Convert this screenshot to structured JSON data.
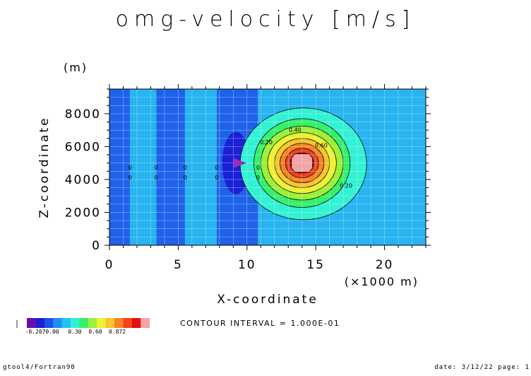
{
  "page": {
    "title": "omg-velocity [m/s]",
    "contour_interval": "CONTOUR INTERVAL = 1.000E-01",
    "footer_left": "gtool4/Fortran90",
    "footer_right": "date: 3/12/22 page: 1"
  },
  "chart_data": {
    "type": "heatmap",
    "title": "omg-velocity [m/s]",
    "xlabel": "X-coordinate",
    "x_unit": "(×1000 m)",
    "ylabel": "Z-coordinate",
    "y_unit": "(m)",
    "xlim": [
      0,
      23
    ],
    "ylim": [
      0,
      9500
    ],
    "x_ticks": [
      0,
      5,
      10,
      15,
      20
    ],
    "x_tick_labels": [
      "0",
      "5",
      "10",
      "15",
      "20"
    ],
    "y_ticks": [
      0,
      2000,
      4000,
      6000,
      8000
    ],
    "y_tick_labels": [
      "0",
      "2000",
      "4000",
      "6000",
      "8000"
    ],
    "grid": true,
    "contour_interval": 0.1,
    "color_scale": {
      "levels": [
        -0.207,
        0.0,
        0.3,
        0.6,
        0.872
      ],
      "level_labels": [
        "-0.207",
        "0.00",
        "0.30",
        "0.60",
        "0.872"
      ],
      "colors": [
        "#6a0ea8",
        "#1b1fd6",
        "#1e4fe6",
        "#1f8ff3",
        "#22c3f3",
        "#33f2d4",
        "#34f06a",
        "#9cf035",
        "#eef22e",
        "#f9c52a",
        "#f98320",
        "#f5401d",
        "#e01010",
        "#f6a3a6"
      ]
    },
    "bands": [
      {
        "x0": 0.0,
        "x1": 1.5,
        "value": -0.05,
        "color": "#1f62ea"
      },
      {
        "x0": 1.5,
        "x1": 3.4,
        "value": 0.02,
        "color": "#27b4f0"
      },
      {
        "x0": 3.4,
        "x1": 5.5,
        "value": -0.05,
        "color": "#1f62ea"
      },
      {
        "x0": 5.5,
        "x1": 7.8,
        "value": 0.02,
        "color": "#27b4f0"
      },
      {
        "x0": 7.8,
        "x1": 10.8,
        "value": -0.05,
        "color": "#1f62ea"
      },
      {
        "x0": 10.8,
        "x1": 23.0,
        "value": 0.02,
        "color": "#27b4f0"
      }
    ],
    "features": [
      {
        "name": "negative-core",
        "cx": 9.2,
        "cz": 5000,
        "rx": 1.0,
        "rz": 1900,
        "value": -0.15,
        "color": "#1b1fd6"
      },
      {
        "name": "positive-peak",
        "cx": 14.0,
        "cz": 5000,
        "value": 0.872
      }
    ],
    "contours": [
      {
        "value": 0.1,
        "color": "#33f2d4",
        "cx": 14.1,
        "cz": 4950,
        "rx": 4.6,
        "rz": 3400
      },
      {
        "value": 0.2,
        "color": "#34f06a",
        "cx": 14.0,
        "cz": 5000,
        "rx": 3.5,
        "rz": 2700
      },
      {
        "value": 0.3,
        "color": "#9cf035",
        "cx": 14.0,
        "cz": 5000,
        "rx": 3.0,
        "rz": 2250
      },
      {
        "value": 0.4,
        "color": "#eef22e",
        "cx": 14.0,
        "cz": 5000,
        "rx": 2.5,
        "rz": 1850
      },
      {
        "value": 0.5,
        "color": "#f9c52a",
        "cx": 14.0,
        "cz": 5000,
        "rx": 2.0,
        "rz": 1500
      },
      {
        "value": 0.6,
        "color": "#f98320",
        "cx": 14.0,
        "cz": 5000,
        "rx": 1.6,
        "rz": 1200
      },
      {
        "value": 0.7,
        "color": "#f5401d",
        "cx": 14.0,
        "cz": 5000,
        "rx": 1.2,
        "rz": 900
      },
      {
        "value": 0.8,
        "color": "#e01010",
        "cx": 14.0,
        "cz": 5000,
        "rx": 0.85,
        "rz": 620
      }
    ],
    "contour_labels": [
      {
        "text": "0.40",
        "x": 13.5,
        "z": 6900
      },
      {
        "text": "0.20",
        "x": 11.4,
        "z": 6150
      },
      {
        "text": "0.60",
        "x": 15.4,
        "z": 5950
      },
      {
        "text": "0.20",
        "x": 17.2,
        "z": 3500
      },
      {
        "text": "0",
        "x": 1.5,
        "z": 4600
      },
      {
        "text": "0",
        "x": 1.5,
        "z": 4000
      },
      {
        "text": "0",
        "x": 3.4,
        "z": 4600
      },
      {
        "text": "0",
        "x": 3.4,
        "z": 4000
      },
      {
        "text": "0",
        "x": 5.5,
        "z": 4600
      },
      {
        "text": "0",
        "x": 5.5,
        "z": 4000
      },
      {
        "text": "0",
        "x": 7.8,
        "z": 4600
      },
      {
        "text": "0",
        "x": 7.8,
        "z": 4000
      },
      {
        "text": "0",
        "x": 10.8,
        "z": 4600
      },
      {
        "text": "0",
        "x": 10.8,
        "z": 4000
      }
    ],
    "marker": {
      "x": 9.5,
      "z": 5000,
      "shape": "triangle-right",
      "color": "#9b2bb8"
    }
  }
}
